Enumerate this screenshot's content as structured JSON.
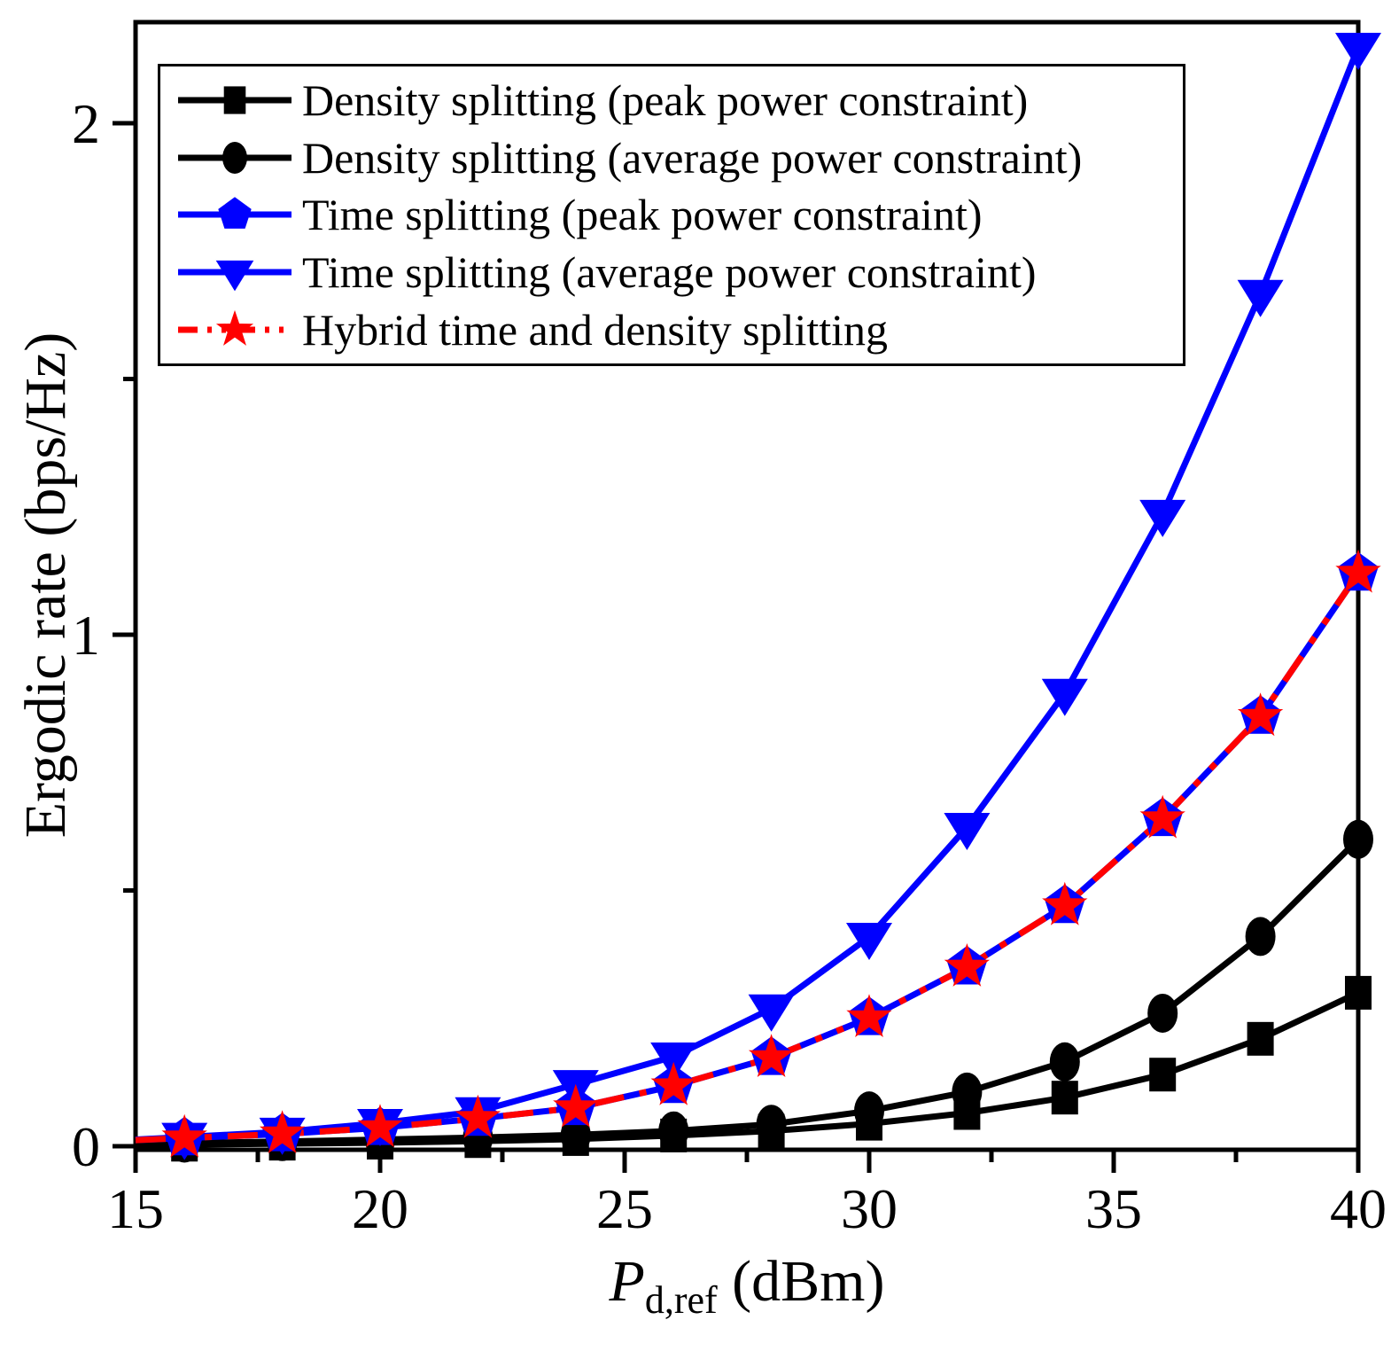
{
  "axes": {
    "y_label": "Ergodic rate (bps/Hz)",
    "x_label_var": "P",
    "x_label_sub": "d,ref",
    "x_label_unit": " (dBm)"
  },
  "legend": {
    "items": [
      {
        "label": "Density splitting (peak power constraint)",
        "marker": "square",
        "color": "#000000",
        "line": "solid"
      },
      {
        "label": "Density splitting (average power constraint)",
        "marker": "circle",
        "color": "#000000",
        "line": "solid"
      },
      {
        "label": "Time splitting (peak power constraint)",
        "marker": "pentagon",
        "color": "#0000ff",
        "line": "solid"
      },
      {
        "label": "Time splitting (average power constraint)",
        "marker": "triangle-down",
        "color": "#0000ff",
        "line": "solid"
      },
      {
        "label": "Hybrid time and density splitting",
        "marker": "star",
        "color": "#ff0000",
        "line": "dash-dot"
      }
    ]
  },
  "chart_data": {
    "type": "line",
    "title": "",
    "xlabel": "P_d,ref (dBm)",
    "ylabel": "Ergodic rate (bps/Hz)",
    "xlim": [
      15,
      40
    ],
    "ylim": [
      0,
      2.2
    ],
    "grid": false,
    "legend_position": "upper-left",
    "x_ticks_major": [
      15,
      20,
      25,
      30,
      35,
      40
    ],
    "x_ticks_minor": [
      17.5,
      22.5,
      27.5,
      32.5,
      37.5
    ],
    "x_tick_labels": [
      "15",
      "20",
      "25",
      "30",
      "35",
      "40"
    ],
    "y_ticks_major": [
      0,
      1,
      2
    ],
    "y_ticks_minor": [
      0.5,
      1.5
    ],
    "y_tick_labels": [
      "0",
      "1",
      "2"
    ],
    "x": [
      15,
      16,
      18,
      20,
      22,
      24,
      26,
      28,
      30,
      32,
      34,
      36,
      38,
      40
    ],
    "marker_at_first_x": false,
    "series": [
      {
        "name": "Density splitting (peak power constraint)",
        "color": "#000000",
        "marker": "square",
        "line": "solid",
        "values": [
          0.002,
          0.003,
          0.005,
          0.007,
          0.01,
          0.014,
          0.021,
          0.03,
          0.044,
          0.065,
          0.095,
          0.14,
          0.21,
          0.3
        ]
      },
      {
        "name": "Density splitting (average power constraint)",
        "color": "#000000",
        "marker": "circle",
        "line": "solid",
        "values": [
          0.004,
          0.006,
          0.009,
          0.013,
          0.017,
          0.022,
          0.03,
          0.043,
          0.069,
          0.106,
          0.165,
          0.26,
          0.41,
          0.6
        ]
      },
      {
        "name": "Time splitting (peak power constraint)",
        "color": "#0000ff",
        "marker": "pentagon",
        "line": "solid",
        "values": [
          0.012,
          0.016,
          0.024,
          0.036,
          0.054,
          0.075,
          0.118,
          0.173,
          0.251,
          0.35,
          0.47,
          0.64,
          0.84,
          1.12
        ]
      },
      {
        "name": "Time splitting (average power constraint)",
        "color": "#0000ff",
        "marker": "triangle-down",
        "line": "solid",
        "values": [
          0.013,
          0.018,
          0.028,
          0.045,
          0.068,
          0.121,
          0.175,
          0.269,
          0.409,
          0.624,
          0.886,
          1.236,
          1.666,
          2.149
        ]
      },
      {
        "name": "Hybrid time and density splitting",
        "color": "#ff0000",
        "marker": "star",
        "line": "dash-dot",
        "values": [
          0.012,
          0.016,
          0.024,
          0.036,
          0.054,
          0.075,
          0.118,
          0.173,
          0.251,
          0.35,
          0.47,
          0.64,
          0.84,
          1.12
        ]
      }
    ]
  }
}
